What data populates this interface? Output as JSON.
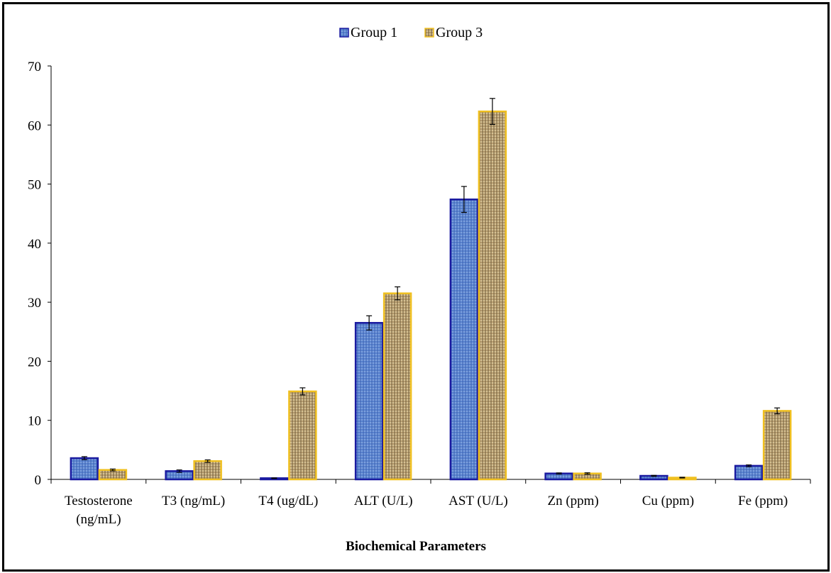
{
  "chart_data": {
    "type": "bar",
    "title": "",
    "xlabel": "Biochemical Parameters",
    "ylabel": "",
    "ylim": [
      0,
      70
    ],
    "yticks": [
      0,
      10,
      20,
      30,
      40,
      50,
      60,
      70
    ],
    "grid": false,
    "legend_position": "top-center",
    "categories": [
      [
        "Testosterone",
        "(ng/mL)"
      ],
      [
        "T3 (ng/mL)"
      ],
      [
        "T4 (ug/dL)"
      ],
      [
        "ALT (U/L)"
      ],
      [
        "AST (U/L)"
      ],
      [
        "Zn (ppm)"
      ],
      [
        "Cu (ppm)"
      ],
      [
        "Fe (ppm)"
      ]
    ],
    "series": [
      {
        "name": "Group 1",
        "fill_color": "#4a74c4",
        "edge_color": "#1a1aa0",
        "values": [
          3.6,
          1.4,
          0.2,
          26.5,
          47.4,
          1.0,
          0.6,
          2.3
        ],
        "errors": [
          0.25,
          0.2,
          0.05,
          1.2,
          2.2,
          0.1,
          0.08,
          0.15
        ]
      },
      {
        "name": "Group 3",
        "fill_color": "#b39a6e",
        "edge_color": "#f0c020",
        "values": [
          1.6,
          3.1,
          14.9,
          31.5,
          62.3,
          1.0,
          0.3,
          11.6
        ],
        "errors": [
          0.15,
          0.2,
          0.6,
          1.1,
          2.2,
          0.12,
          0.06,
          0.5
        ]
      }
    ]
  }
}
